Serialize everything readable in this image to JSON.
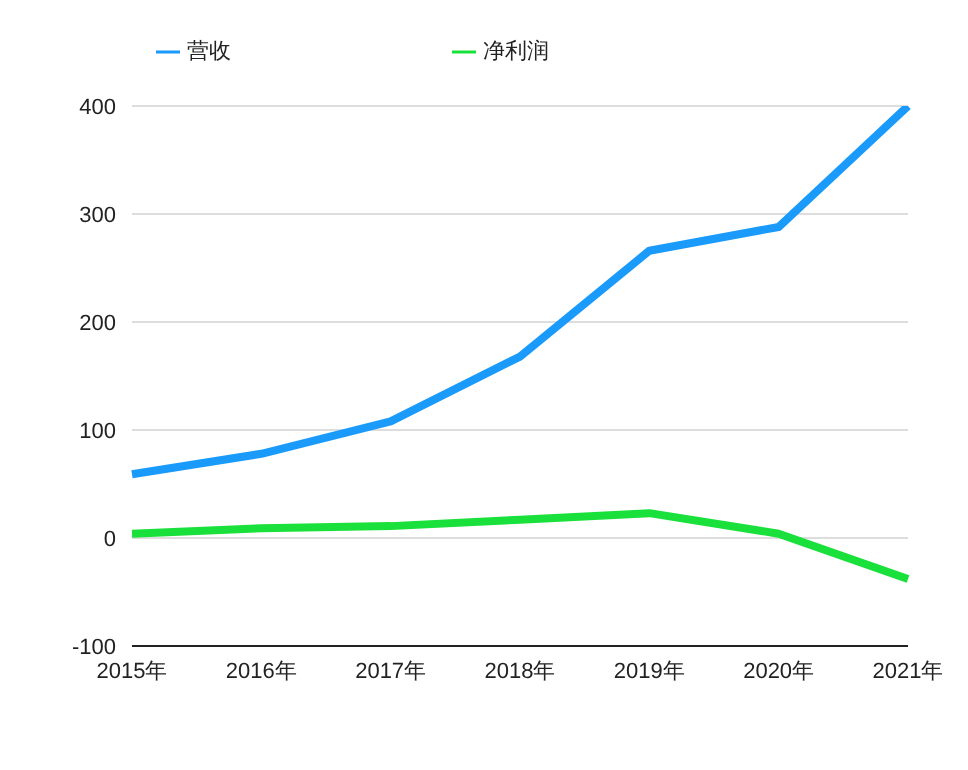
{
  "chart_data": {
    "type": "line",
    "categories": [
      "2015年",
      "2016年",
      "2017年",
      "2018年",
      "2019年",
      "2020年",
      "2021年"
    ],
    "series": [
      {
        "name": "营收",
        "color": "#1a9bfc",
        "values": [
          59,
          78,
          108,
          168,
          266,
          288,
          400
        ]
      },
      {
        "name": "净利润",
        "color": "#19e03a",
        "values": [
          4,
          9,
          11,
          17,
          23,
          4,
          -38
        ]
      }
    ],
    "ylim": [
      -100,
      400
    ],
    "yticks": [
      -100,
      0,
      100,
      200,
      300,
      400
    ],
    "grid": "y",
    "legend": "top",
    "marker": "none",
    "line_style": "solid"
  }
}
